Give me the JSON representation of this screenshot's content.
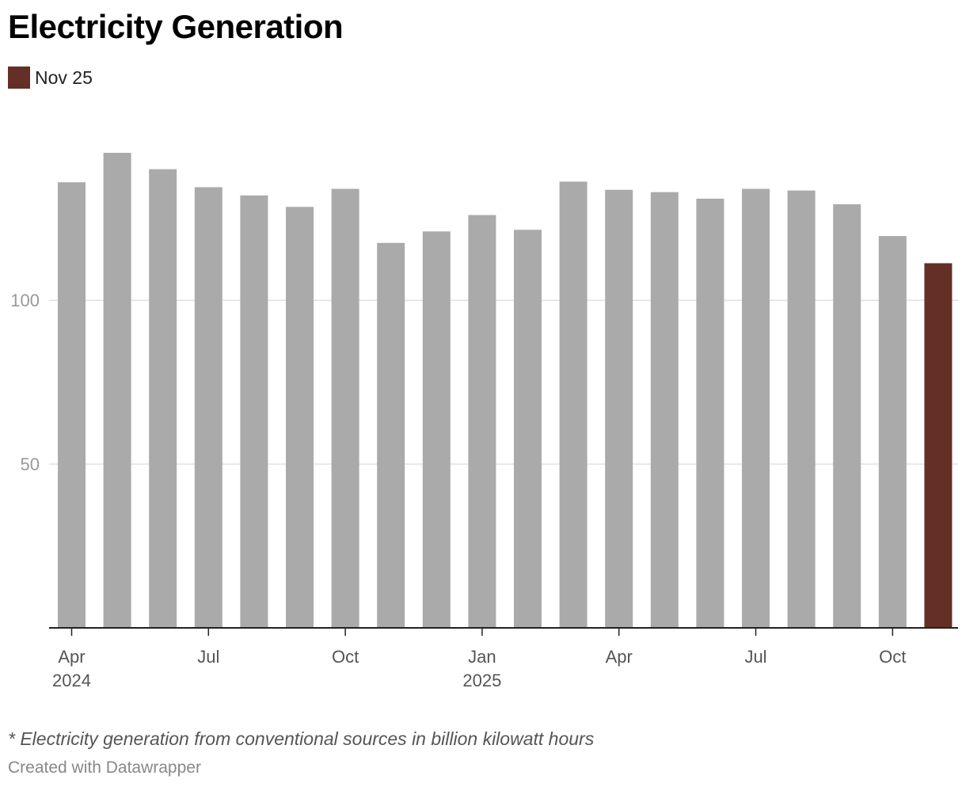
{
  "chart_data": {
    "type": "bar",
    "title": "Electricity Generation",
    "legend": [
      {
        "label": "Nov 25",
        "color": "#632f27"
      }
    ],
    "categories": [
      "Apr 2024",
      "May 2024",
      "Jun 2024",
      "Jul 2024",
      "Aug 2024",
      "Sep 2024",
      "Oct 2024",
      "Nov 2024",
      "Dec 2024",
      "Jan 2025",
      "Feb 2025",
      "Mar 2025",
      "Apr 2025",
      "May 2025",
      "Jun 2025",
      "Jul 2025",
      "Aug 2025",
      "Sep 2025",
      "Oct 2025",
      "Nov 2025"
    ],
    "values": [
      136,
      145,
      140,
      134.5,
      132,
      128.5,
      134,
      117.5,
      121,
      126,
      121.5,
      136.2,
      133.7,
      133,
      131,
      134,
      133.5,
      129.3,
      119.6,
      111.3
    ],
    "highlight_index": 19,
    "colors": {
      "default": "#aaaaaa",
      "highlight": "#632f27"
    },
    "ylim": [
      0,
      145
    ],
    "yticks": [
      50,
      100
    ],
    "ytick_labels": [
      "50",
      "100"
    ],
    "xticks": [
      {
        "index": 0,
        "label": "Apr",
        "year": "2024"
      },
      {
        "index": 3,
        "label": "Jul",
        "year": ""
      },
      {
        "index": 6,
        "label": "Oct",
        "year": ""
      },
      {
        "index": 9,
        "label": "Jan",
        "year": "2025"
      },
      {
        "index": 12,
        "label": "Apr",
        "year": ""
      },
      {
        "index": 15,
        "label": "Jul",
        "year": ""
      },
      {
        "index": 18,
        "label": "Oct",
        "year": ""
      }
    ],
    "xlabel": "",
    "ylabel": "",
    "grid": true
  },
  "footnote": "* Electricity generation from conventional sources in billion kilowatt hours",
  "credit": "Created with Datawrapper"
}
